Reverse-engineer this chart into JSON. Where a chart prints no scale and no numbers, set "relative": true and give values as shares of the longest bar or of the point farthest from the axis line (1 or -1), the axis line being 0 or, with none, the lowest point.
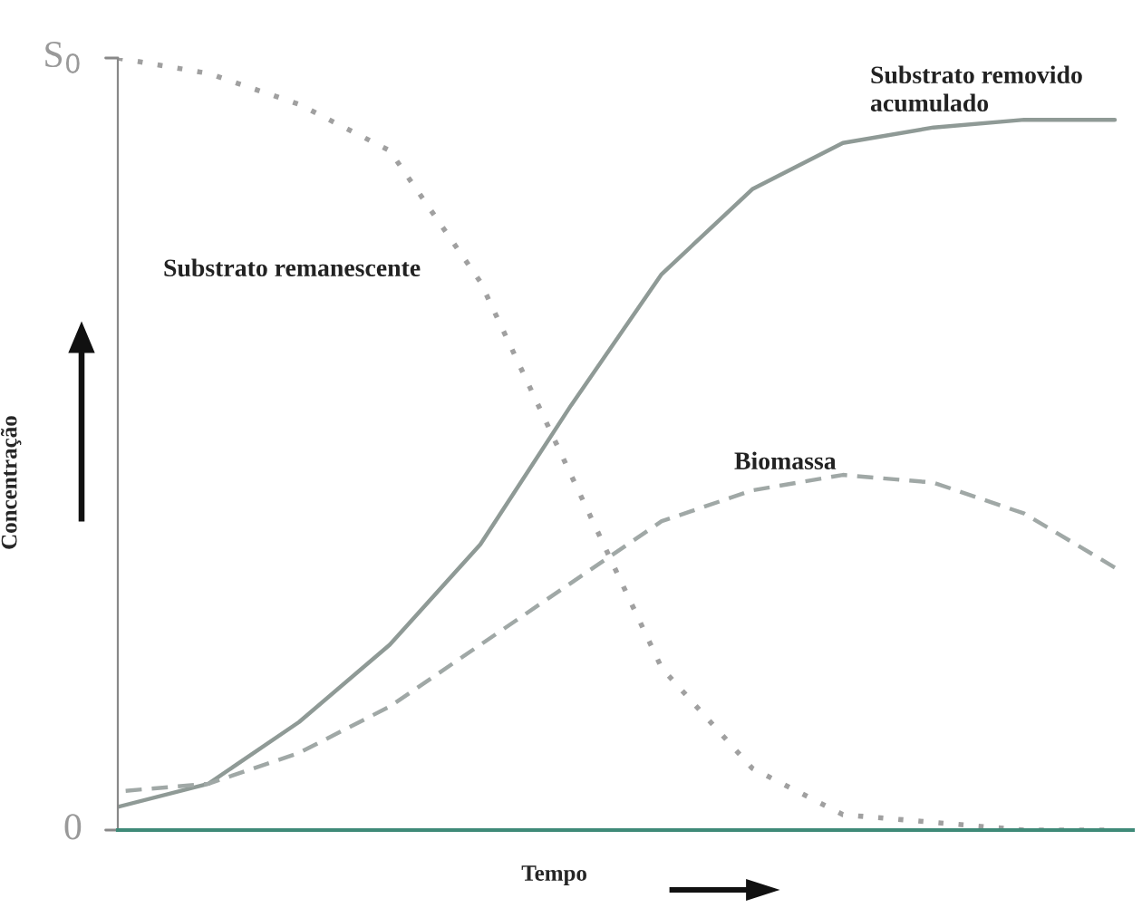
{
  "chart_data": {
    "type": "line",
    "xlabel": "Tempo",
    "ylabel": "Concentração",
    "categories": [
      null,
      null,
      null,
      null,
      null,
      null,
      null,
      null,
      null,
      null,
      null,
      null
    ],
    "relative": true,
    "annotations": [
      "0",
      "S$_{0}$"
    ],
    "series": [
      {
        "name": "Substrato remanescente",
        "color": "#a0a0a0",
        "line_style": "dotted",
        "values": [
          1.0,
          0.98,
          0.94,
          0.88,
          0.71,
          0.46,
          0.21,
          0.08,
          0.02,
          0.01,
          0.0,
          0.0
        ]
      },
      {
        "name": "Substrato removido acumulado",
        "color": "#8f9a96",
        "line_style": "solid",
        "values": [
          0.03,
          0.06,
          0.14,
          0.24,
          0.37,
          0.55,
          0.72,
          0.83,
          0.89,
          0.91,
          0.92,
          0.92
        ]
      },
      {
        "name": "Biomassa",
        "color": "#a0a8a6",
        "line_style": "dashed",
        "values": [
          0.05,
          0.06,
          0.1,
          0.16,
          0.24,
          0.32,
          0.4,
          0.44,
          0.46,
          0.45,
          0.41,
          0.34
        ]
      }
    ],
    "grid": false,
    "legend": false
  }
}
